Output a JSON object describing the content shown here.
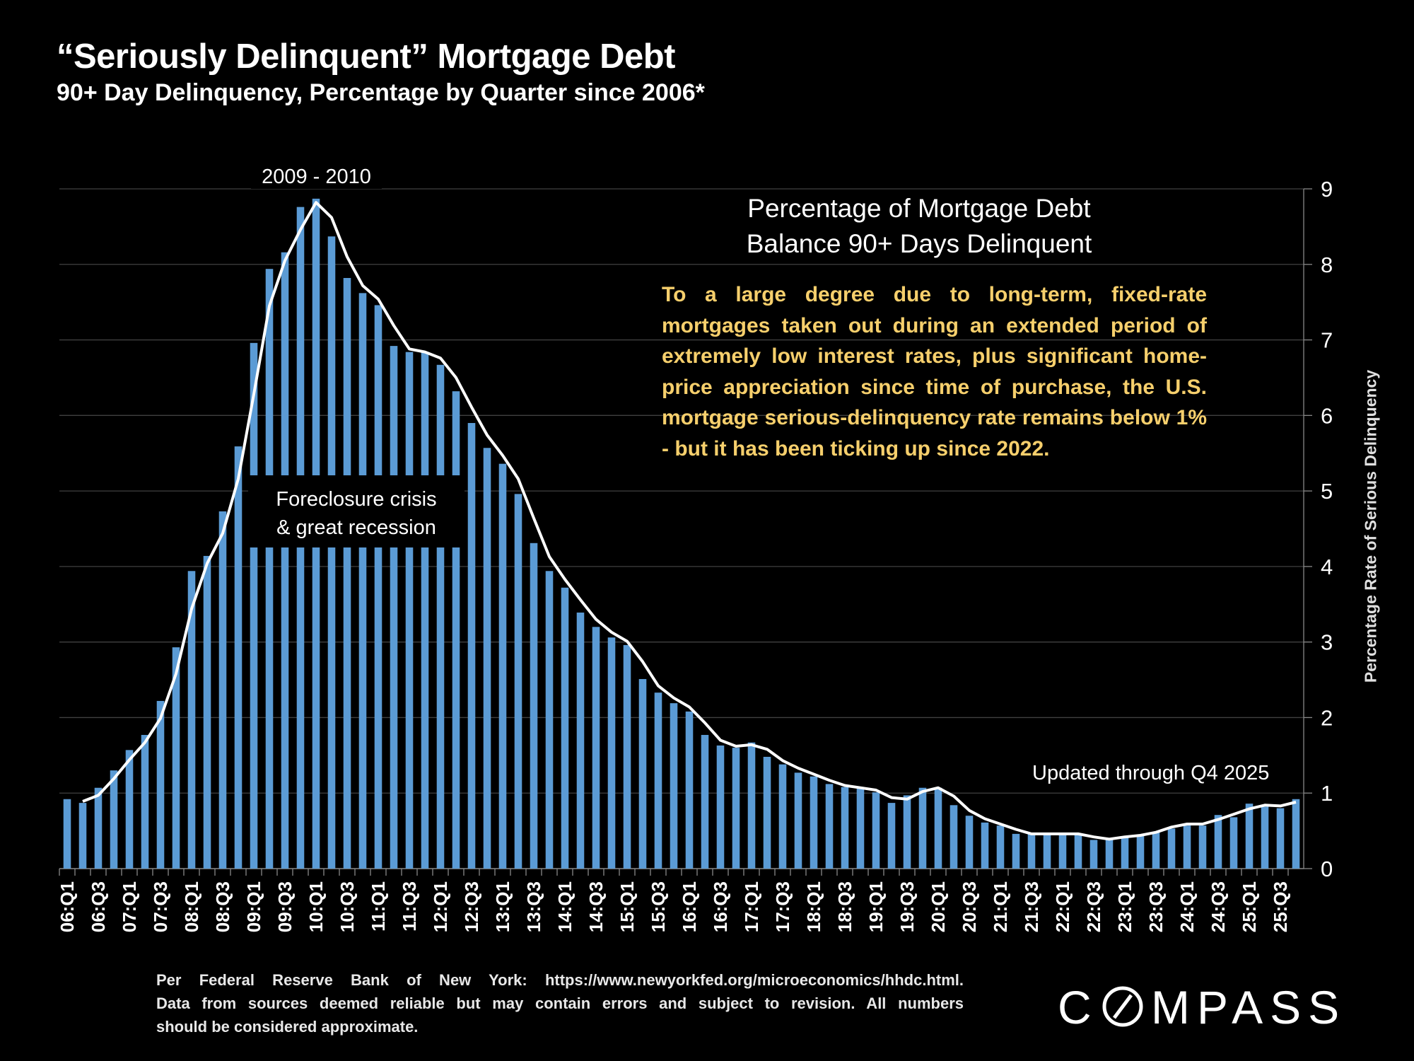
{
  "header": {
    "title": "“Seriously Delinquent” Mortgage Debt",
    "subtitle": "90+ Day Delinquency, Percentage by Quarter since 2006*"
  },
  "annotations": {
    "peak_label": "2009 - 2010",
    "chart_heading_line1": "Percentage of Mortgage Debt",
    "chart_heading_line2": "Balance 90+ Days Delinquent",
    "note": "To a large degree due to long-term, fixed-rate mortgages taken out during an extended period of extremely low interest rates, plus significant home-price appreciation since time of purchase, the U.S. mortgage serious-delinquency rate remains below 1% - but it has been ticking up since 2022.",
    "crisis_line1": "Foreclosure crisis",
    "crisis_line2": "& great recession",
    "updated": "Updated through Q4 2025"
  },
  "footer": {
    "line1": "Per Federal Reserve Bank of New York: https://www.newyorkfed.org/microeconomics/hhdc.html.",
    "line2": "Data from sources deemed reliable but may contain errors and subject to revision. All numbers",
    "line3": "should be considered approximate."
  },
  "logo": "COMPASS",
  "colors": {
    "bar": "#5b9bd5",
    "line": "#ffffff",
    "note": "#f6cf6c",
    "background": "#000000",
    "grid": "#404040"
  },
  "chart_data": {
    "type": "bar",
    "ylabel": "Percentage Rate of Serious Delinquency",
    "ylim": [
      0,
      9
    ],
    "yticks": [
      0,
      1,
      2,
      3,
      4,
      5,
      6,
      7,
      8,
      9
    ],
    "y_axis_side": "right",
    "grid": true,
    "x_tick_labels": [
      "06:Q1",
      "06:Q3",
      "07:Q1",
      "07:Q3",
      "08:Q1",
      "08:Q3",
      "09:Q1",
      "09:Q3",
      "10:Q1",
      "10:Q3",
      "11:Q1",
      "11:Q3",
      "12:Q1",
      "12:Q3",
      "13:Q1",
      "13:Q3",
      "14:Q1",
      "14:Q3",
      "15:Q1",
      "15:Q3",
      "16:Q1",
      "16:Q3",
      "17:Q1",
      "17:Q3",
      "18:Q1",
      "18:Q3",
      "19:Q1",
      "19:Q3",
      "20:Q1",
      "20:Q3",
      "21:Q1",
      "21:Q3",
      "22:Q1",
      "22:Q3",
      "23:Q1",
      "23:Q3",
      "24:Q1",
      "24:Q3",
      "25:Q1",
      "25:Q3"
    ],
    "categories": [
      "06:Q1",
      "06:Q2",
      "06:Q3",
      "06:Q4",
      "07:Q1",
      "07:Q2",
      "07:Q3",
      "07:Q4",
      "08:Q1",
      "08:Q2",
      "08:Q3",
      "08:Q4",
      "09:Q1",
      "09:Q2",
      "09:Q3",
      "09:Q4",
      "10:Q1",
      "10:Q2",
      "10:Q3",
      "10:Q4",
      "11:Q1",
      "11:Q2",
      "11:Q3",
      "11:Q4",
      "12:Q1",
      "12:Q2",
      "12:Q3",
      "12:Q4",
      "13:Q1",
      "13:Q2",
      "13:Q3",
      "13:Q4",
      "14:Q1",
      "14:Q2",
      "14:Q3",
      "14:Q4",
      "15:Q1",
      "15:Q2",
      "15:Q3",
      "15:Q4",
      "16:Q1",
      "16:Q2",
      "16:Q3",
      "16:Q4",
      "17:Q1",
      "17:Q2",
      "17:Q3",
      "17:Q4",
      "18:Q1",
      "18:Q2",
      "18:Q3",
      "18:Q4",
      "19:Q1",
      "19:Q2",
      "19:Q3",
      "19:Q4",
      "20:Q1",
      "20:Q2",
      "20:Q3",
      "20:Q4",
      "21:Q1",
      "21:Q2",
      "21:Q3",
      "21:Q4",
      "22:Q1",
      "22:Q2",
      "22:Q3",
      "22:Q4",
      "23:Q1",
      "23:Q2",
      "23:Q3",
      "23:Q4",
      "24:Q1",
      "24:Q2",
      "24:Q3",
      "24:Q4",
      "25:Q1",
      "25:Q2",
      "25:Q3",
      "25:Q4"
    ],
    "series": [
      {
        "type": "bar",
        "values": [
          0.92,
          0.87,
          1.07,
          1.3,
          1.57,
          1.77,
          2.22,
          2.93,
          3.94,
          4.14,
          4.73,
          5.59,
          6.96,
          7.94,
          8.16,
          8.76,
          8.87,
          8.37,
          7.82,
          7.62,
          7.46,
          6.92,
          6.84,
          6.84,
          6.67,
          6.32,
          5.9,
          5.57,
          5.36,
          4.96,
          4.31,
          3.94,
          3.72,
          3.39,
          3.2,
          3.06,
          2.96,
          2.51,
          2.33,
          2.19,
          2.08,
          1.77,
          1.63,
          1.6,
          1.67,
          1.48,
          1.38,
          1.27,
          1.22,
          1.12,
          1.08,
          1.06,
          1.01,
          0.87,
          0.97,
          1.07,
          1.07,
          0.84,
          0.7,
          0.61,
          0.57,
          0.46,
          0.46,
          0.46,
          0.46,
          0.46,
          0.38,
          0.4,
          0.43,
          0.44,
          0.48,
          0.53,
          0.57,
          0.57,
          0.71,
          0.68,
          0.86,
          0.82,
          0.8,
          0.92
        ]
      },
      {
        "type": "line",
        "values": [
          null,
          0.89,
          0.97,
          1.19,
          1.44,
          1.67,
          1.99,
          2.58,
          3.44,
          4.04,
          4.44,
          5.16,
          6.28,
          7.45,
          8.05,
          8.46,
          8.82,
          8.62,
          8.1,
          7.72,
          7.54,
          7.19,
          6.88,
          6.84,
          6.76,
          6.5,
          6.11,
          5.74,
          5.47,
          5.16,
          4.64,
          4.13,
          3.83,
          3.56,
          3.3,
          3.13,
          3.01,
          2.74,
          2.42,
          2.26,
          2.14,
          1.93,
          1.7,
          1.62,
          1.64,
          1.58,
          1.43,
          1.33,
          1.25,
          1.17,
          1.1,
          1.07,
          1.04,
          0.94,
          0.92,
          1.02,
          1.07,
          0.96,
          0.77,
          0.66,
          0.59,
          0.52,
          0.46,
          0.46,
          0.46,
          0.46,
          0.42,
          0.39,
          0.42,
          0.44,
          0.48,
          0.55,
          0.59,
          0.59,
          0.65,
          0.72,
          0.79,
          0.84,
          0.83,
          0.88
        ]
      }
    ]
  }
}
